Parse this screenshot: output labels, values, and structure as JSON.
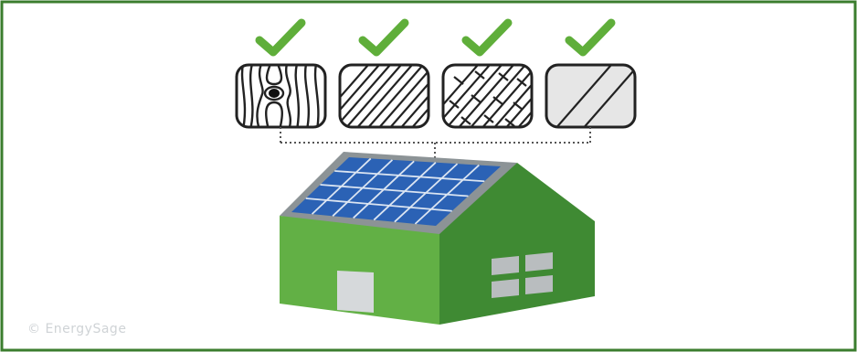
{
  "colors": {
    "border": "#3b7d2e",
    "check": "#5fae3a",
    "house_front": "#62b045",
    "house_side": "#3f8a33",
    "roof_frame": "#8c9396",
    "panel": "#2b62b5",
    "panel_line": "#dbe5f2",
    "door": "#d6d9db",
    "window": "#b9bdbf",
    "tile_stroke": "#222222",
    "tile_light": "#e6e6e6"
  },
  "roof_types": [
    {
      "name": "wood-shingle",
      "approved": true,
      "check_icon": "checkmark-icon"
    },
    {
      "name": "asphalt-shingle",
      "approved": true,
      "check_icon": "checkmark-icon"
    },
    {
      "name": "tile",
      "approved": true,
      "check_icon": "checkmark-icon"
    },
    {
      "name": "metal",
      "approved": true,
      "check_icon": "checkmark-icon"
    }
  ],
  "solar_panel_grid": {
    "rows": 4,
    "cols": 7
  },
  "watermark": "© EnergySage"
}
